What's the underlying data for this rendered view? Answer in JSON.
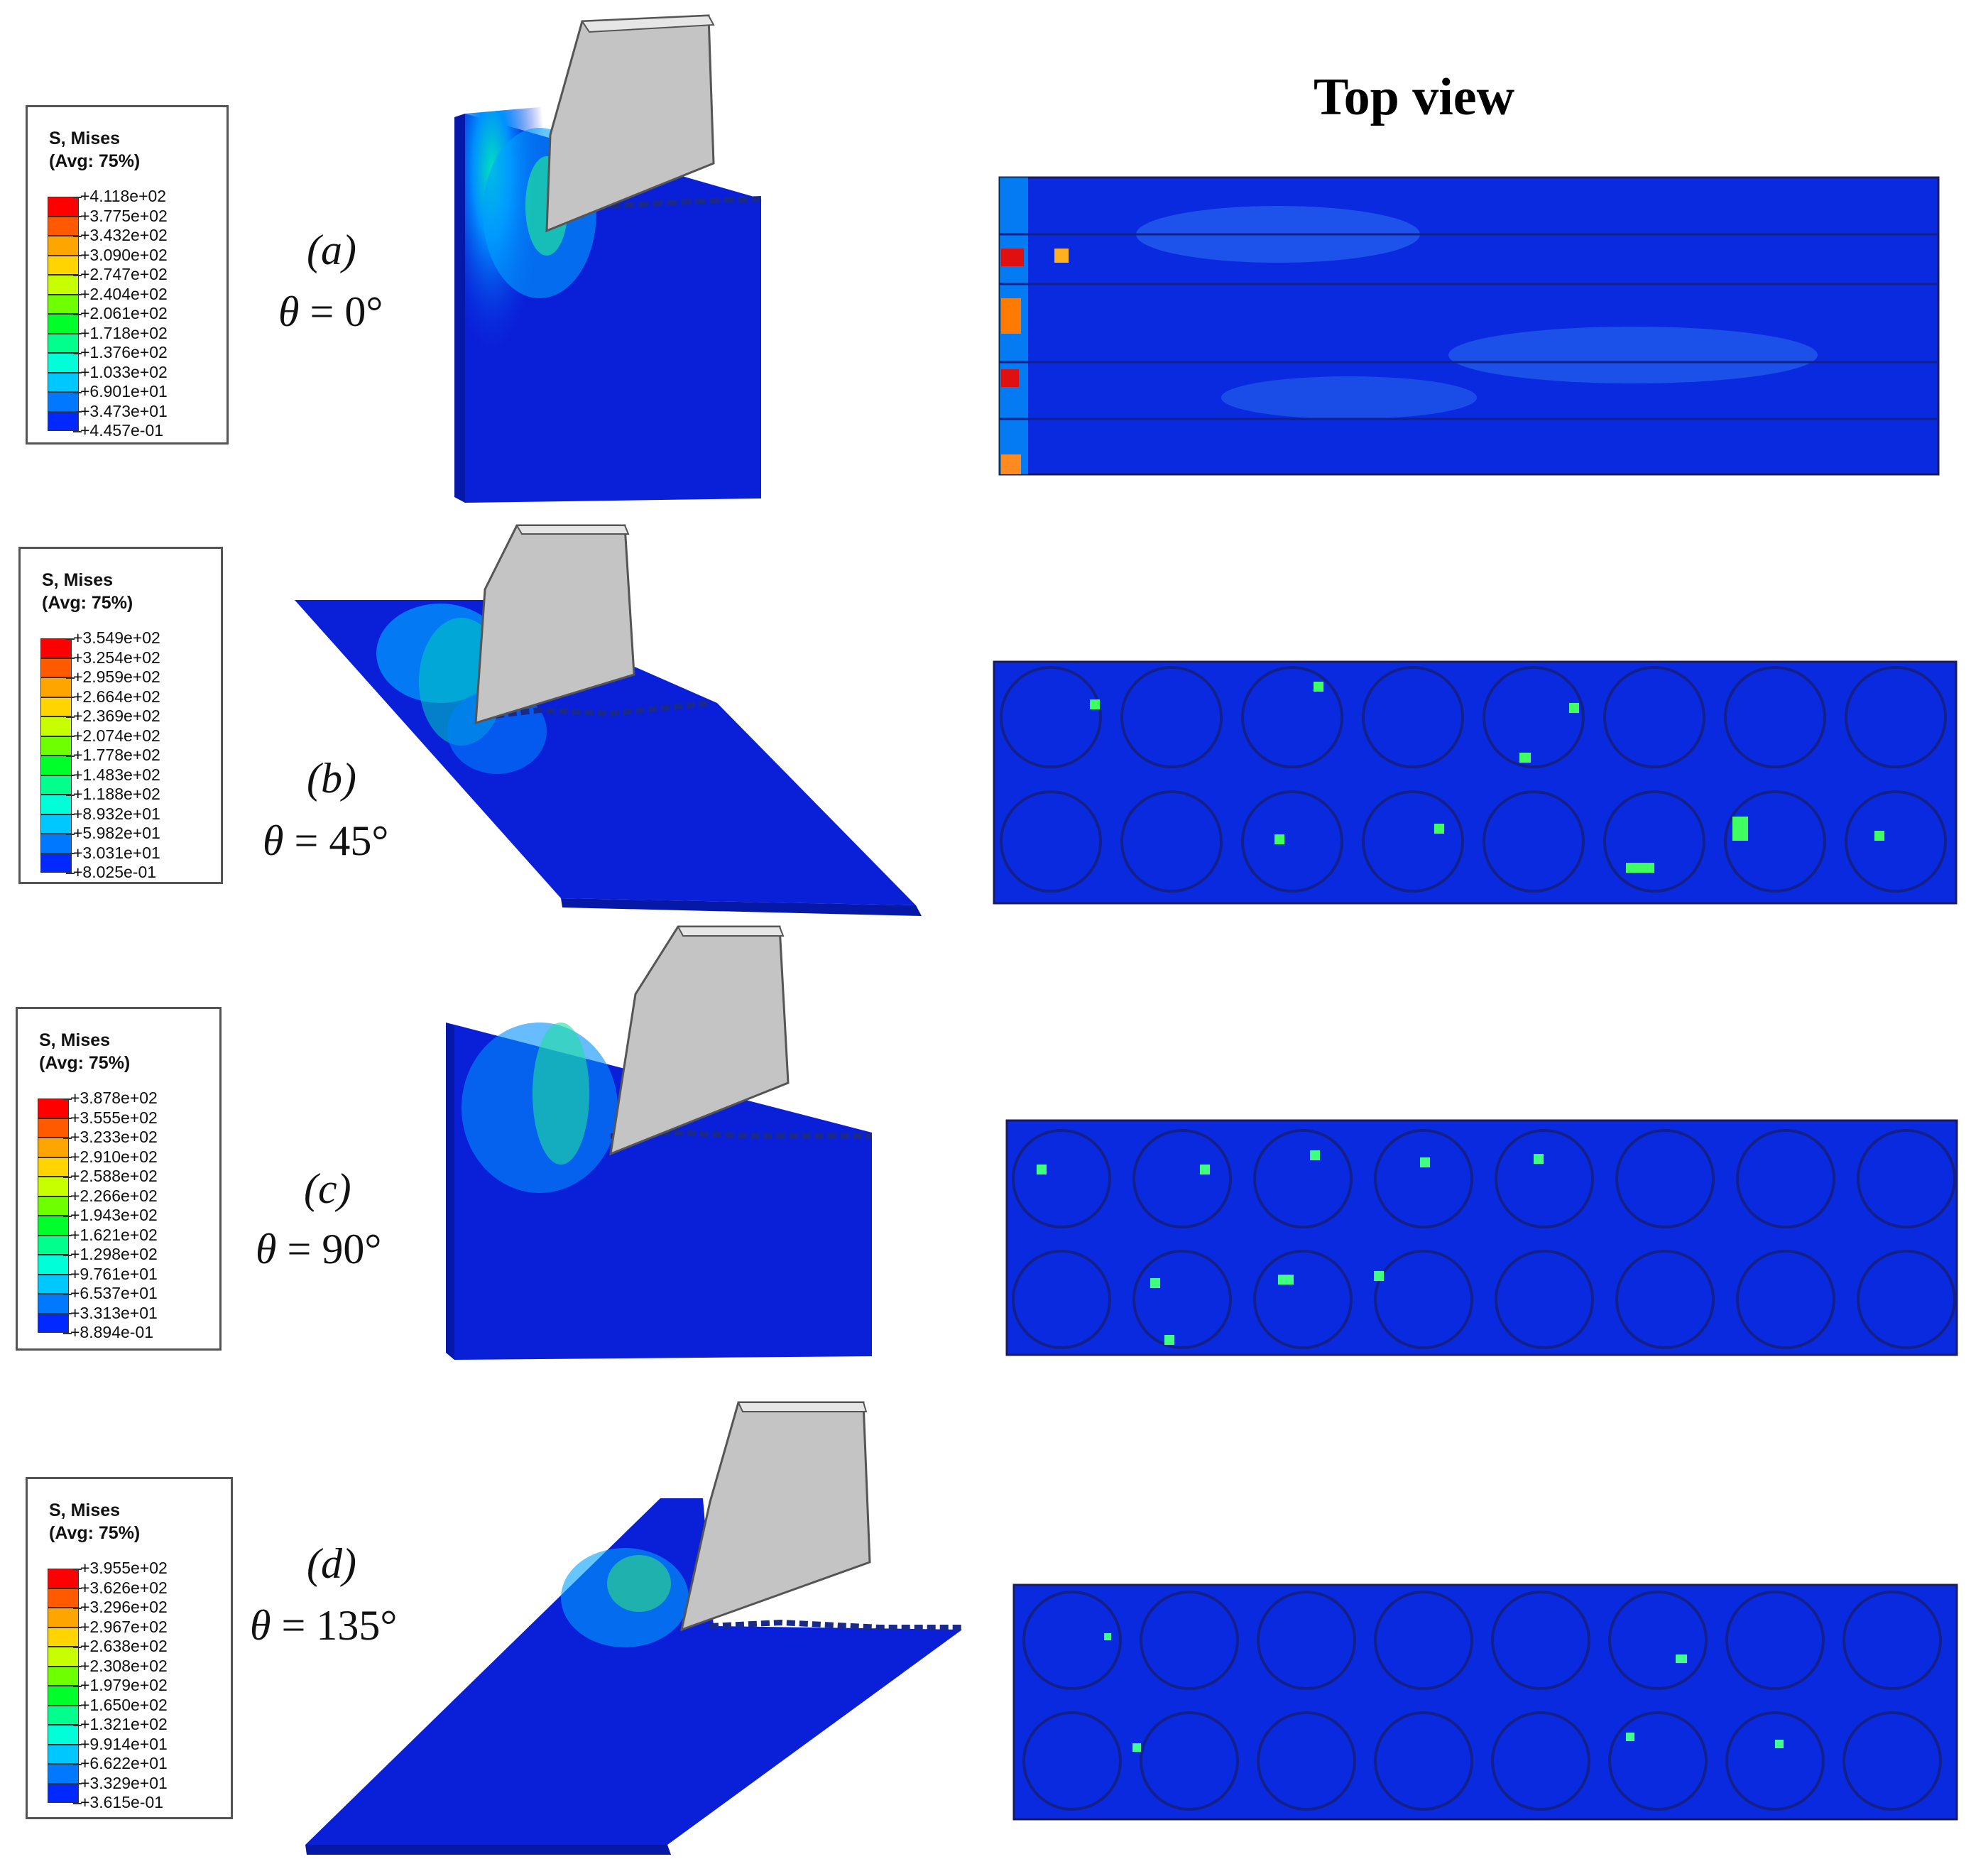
{
  "top_view_title": "Top view",
  "panels": [
    {
      "case_label": "(a)",
      "theta_symbol": "θ",
      "angle_text": " = 0°",
      "legend": {
        "title": "S, Mises",
        "avg": "(Avg: 75%)",
        "ticks": [
          "+4.118e+02",
          "+3.775e+02",
          "+3.432e+02",
          "+3.090e+02",
          "+2.747e+02",
          "+2.404e+02",
          "+2.061e+02",
          "+1.718e+02",
          "+1.376e+02",
          "+1.033e+02",
          "+6.901e+01",
          "+3.473e+01",
          "+4.457e-01"
        ]
      }
    },
    {
      "case_label": "(b)",
      "theta_symbol": "θ",
      "angle_text": " = 45°",
      "legend": {
        "title": "S, Mises",
        "avg": "(Avg: 75%)",
        "ticks": [
          "+3.549e+02",
          "+3.254e+02",
          "+2.959e+02",
          "+2.664e+02",
          "+2.369e+02",
          "+2.074e+02",
          "+1.778e+02",
          "+1.483e+02",
          "+1.188e+02",
          "+8.932e+01",
          "+5.982e+01",
          "+3.031e+01",
          "+8.025e-01"
        ]
      }
    },
    {
      "case_label": "(c)",
      "theta_symbol": "θ",
      "angle_text": " = 90°",
      "legend": {
        "title": "S, Mises",
        "avg": "(Avg: 75%)",
        "ticks": [
          "+3.878e+02",
          "+3.555e+02",
          "+3.233e+02",
          "+2.910e+02",
          "+2.588e+02",
          "+2.266e+02",
          "+1.943e+02",
          "+1.621e+02",
          "+1.298e+02",
          "+9.761e+01",
          "+6.537e+01",
          "+3.313e+01",
          "+8.894e-01"
        ]
      }
    },
    {
      "case_label": "(d)",
      "theta_symbol": "θ",
      "angle_text": " = 135°",
      "legend": {
        "title": "S, Mises",
        "avg": "(Avg: 75%)",
        "ticks": [
          "+3.955e+02",
          "+3.626e+02",
          "+3.296e+02",
          "+2.967e+02",
          "+2.638e+02",
          "+2.308e+02",
          "+1.979e+02",
          "+1.650e+02",
          "+1.321e+02",
          "+9.914e+01",
          "+6.622e+01",
          "+3.329e+01",
          "+3.615e-01"
        ]
      }
    }
  ],
  "colorscale": [
    "#ff0000",
    "#ff5a00",
    "#ffa500",
    "#ffd400",
    "#c8ff00",
    "#6eff00",
    "#00ff2a",
    "#00ff8c",
    "#00ffd9",
    "#00c8ff",
    "#0078ff",
    "#0028ff"
  ],
  "colors": {
    "workpiece_base": "#0a1fd8",
    "tool": "#c4c4c4",
    "tool_edge": "#555555"
  }
}
